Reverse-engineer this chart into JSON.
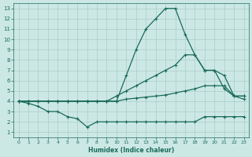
{
  "xlabel": "Humidex (Indice chaleur)",
  "bg_color": "#cce8e4",
  "grid_color": "#aaccc8",
  "line_color": "#1a6b5a",
  "xlim": [
    -0.5,
    23.5
  ],
  "ylim": [
    0.5,
    13.5
  ],
  "xticks": [
    0,
    1,
    2,
    3,
    4,
    5,
    6,
    7,
    8,
    9,
    10,
    11,
    12,
    13,
    14,
    15,
    16,
    17,
    18,
    19,
    20,
    21,
    22,
    23
  ],
  "yticks": [
    1,
    2,
    3,
    4,
    5,
    6,
    7,
    8,
    9,
    10,
    11,
    12,
    13
  ],
  "lines": [
    {
      "x": [
        0,
        1,
        2,
        3,
        4,
        5,
        6,
        7,
        8,
        9,
        10,
        11,
        12,
        13,
        14,
        15,
        16,
        17,
        18,
        19,
        20,
        21,
        22,
        23
      ],
      "y": [
        4,
        4,
        4,
        4,
        4,
        4,
        4,
        4,
        4,
        4,
        4,
        6.5,
        9,
        11,
        12,
        13,
        13,
        10.5,
        8.5,
        7,
        7,
        5.2,
        4.5,
        4.2
      ]
    },
    {
      "x": [
        0,
        1,
        2,
        3,
        4,
        5,
        6,
        7,
        8,
        9,
        10,
        11,
        12,
        13,
        14,
        15,
        16,
        17,
        18,
        19,
        20,
        21,
        22,
        23
      ],
      "y": [
        4,
        4,
        4,
        4,
        4,
        4,
        4,
        4,
        4,
        4,
        4.5,
        5,
        5.5,
        6,
        6.5,
        7,
        7.5,
        8.5,
        8.5,
        7,
        7,
        6.5,
        4.5,
        4.5
      ]
    },
    {
      "x": [
        0,
        1,
        2,
        3,
        4,
        5,
        6,
        7,
        8,
        9,
        10,
        11,
        12,
        13,
        14,
        15,
        16,
        17,
        18,
        19,
        20,
        21,
        22,
        23
      ],
      "y": [
        4,
        4,
        4,
        4,
        4,
        4,
        4,
        4,
        4,
        4,
        4,
        4.2,
        4.3,
        4.4,
        4.5,
        4.6,
        4.8,
        5,
        5.2,
        5.5,
        5.5,
        5.5,
        4.5,
        4.5
      ]
    },
    {
      "x": [
        0,
        1,
        2,
        3,
        4,
        5,
        6,
        7,
        8,
        9,
        10,
        11,
        12,
        13,
        14,
        15,
        16,
        17,
        18,
        19,
        20,
        21,
        22,
        23
      ],
      "y": [
        4,
        3.8,
        3.5,
        3.0,
        3.0,
        2.5,
        2.3,
        1.5,
        2.0,
        2.0,
        2.0,
        2.0,
        2.0,
        2.0,
        2.0,
        2.0,
        2.0,
        2.0,
        2.0,
        2.5,
        2.5,
        2.5,
        2.5,
        2.5
      ]
    }
  ]
}
